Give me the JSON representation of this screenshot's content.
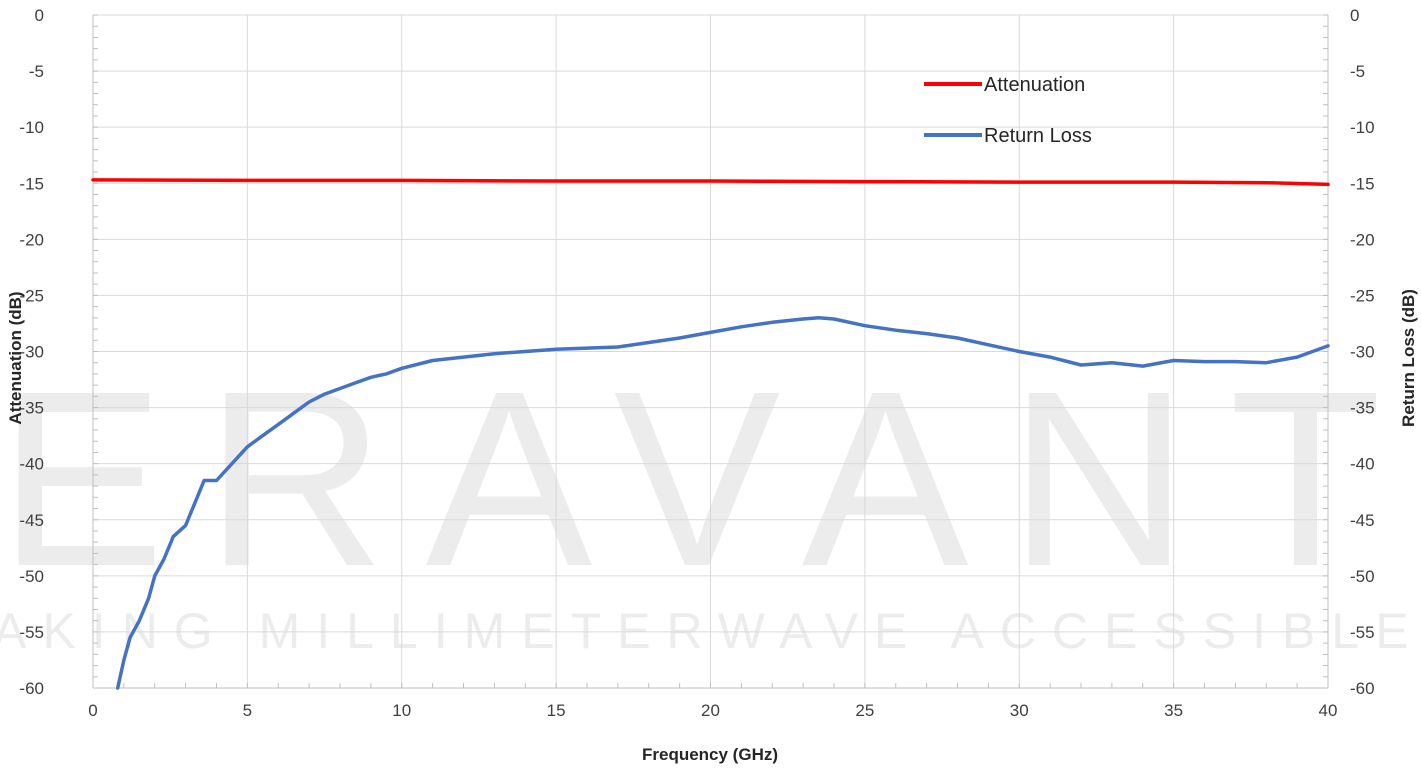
{
  "watermark": {
    "brand": "ERAVANT",
    "tagline": "MAKING MILLIMETERWAVE ACCESSIBLE"
  },
  "chart_data": {
    "type": "line",
    "xlabel": "Frequency (GHz)",
    "ylabel": "Attenuation (dB)",
    "y2label": "Return Loss (dB)",
    "xlim": [
      0,
      40
    ],
    "ylim": [
      -60,
      0
    ],
    "y2lim": [
      -60,
      0
    ],
    "xticks": [
      "0",
      "5",
      "10",
      "15",
      "20",
      "25",
      "30",
      "35",
      "40"
    ],
    "yticks": [
      "0",
      "-5",
      "-10",
      "-15",
      "-20",
      "-25",
      "-30",
      "-35",
      "-40",
      "-45",
      "-50",
      "-55",
      "-60"
    ],
    "y2ticks": [
      "0",
      "-5",
      "-10",
      "-15",
      "-20",
      "-25",
      "-30",
      "-35",
      "-40",
      "-45",
      "-50",
      "-55",
      "-60"
    ],
    "grid": true,
    "legend_position": "top-right",
    "series": [
      {
        "name": "Attenuation",
        "color": "#ff0000",
        "axis": "left",
        "x": [
          0,
          5,
          10,
          15,
          20,
          25,
          30,
          35,
          38,
          40
        ],
        "y": [
          -14.7,
          -14.75,
          -14.75,
          -14.8,
          -14.8,
          -14.85,
          -14.9,
          -14.9,
          -14.95,
          -15.1
        ]
      },
      {
        "name": "Return Loss",
        "color": "#4472c4",
        "axis": "right",
        "x": [
          0.8,
          1.0,
          1.2,
          1.5,
          1.8,
          2.0,
          2.3,
          2.6,
          3.0,
          3.3,
          3.6,
          4.0,
          4.5,
          5.0,
          5.5,
          6.0,
          6.5,
          7.0,
          7.5,
          8.0,
          8.5,
          9.0,
          9.5,
          10.0,
          11.0,
          12.0,
          13.0,
          14.0,
          15.0,
          16.0,
          17.0,
          18.0,
          19.0,
          20.0,
          21.0,
          22.0,
          23.0,
          23.5,
          24.0,
          25.0,
          26.0,
          27.0,
          28.0,
          29.0,
          30.0,
          31.0,
          32.0,
          33.0,
          34.0,
          35.0,
          36.0,
          37.0,
          38.0,
          39.0,
          40.0
        ],
        "y": [
          -60.0,
          -57.5,
          -55.5,
          -54.0,
          -52.0,
          -50.0,
          -48.5,
          -46.5,
          -45.5,
          -43.5,
          -41.5,
          -41.5,
          -40.0,
          -38.5,
          -37.5,
          -36.5,
          -35.5,
          -34.5,
          -33.8,
          -33.3,
          -32.8,
          -32.3,
          -32.0,
          -31.5,
          -30.8,
          -30.5,
          -30.2,
          -30.0,
          -29.8,
          -29.7,
          -29.6,
          -29.2,
          -28.8,
          -28.3,
          -27.8,
          -27.4,
          -27.1,
          -27.0,
          -27.1,
          -27.7,
          -28.1,
          -28.4,
          -28.8,
          -29.4,
          -30.0,
          -30.5,
          -31.2,
          -31.0,
          -31.3,
          -30.8,
          -30.9,
          -30.9,
          -31.0,
          -30.5,
          -29.5
        ]
      }
    ]
  }
}
